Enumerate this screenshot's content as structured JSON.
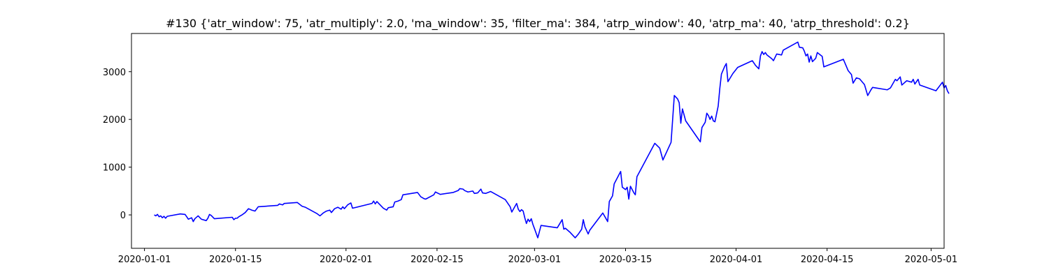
{
  "chart_data": {
    "type": "line",
    "title": "#130 {'atr_window': 75, 'atr_multiply': 2.0, 'ma_window': 35, 'filter_ma': 384, 'atrp_window': 40, 'atrp_ma': 40, 'atrp_threshold': 0.2}",
    "xlabel": "",
    "ylabel": "",
    "x_axis": "date",
    "xlim": [
      "2019-12-30",
      "2020-05-03"
    ],
    "ylim": [
      -700,
      3800
    ],
    "grid": false,
    "legend": "none",
    "x_ticks": [
      "2020-01-01",
      "2020-01-15",
      "2020-02-01",
      "2020-02-15",
      "2020-03-01",
      "2020-03-15",
      "2020-04-01",
      "2020-04-15",
      "2020-05-01"
    ],
    "y_ticks": [
      0,
      1000,
      2000,
      3000
    ],
    "series": [
      {
        "color": "#0000ff",
        "points": [
          [
            "2020-01-02T12:00",
            0
          ],
          [
            "2020-01-02T18:00",
            -20
          ],
          [
            "2020-01-03T00:00",
            10
          ],
          [
            "2020-01-03T06:00",
            -40
          ],
          [
            "2020-01-03T12:00",
            -20
          ],
          [
            "2020-01-03T18:00",
            -60
          ],
          [
            "2020-01-04T00:00",
            -30
          ],
          [
            "2020-01-04T06:00",
            -70
          ],
          [
            "2020-01-04T12:00",
            -30
          ],
          [
            "2020-01-06T12:00",
            20
          ],
          [
            "2020-01-07T06:00",
            10
          ],
          [
            "2020-01-07T12:00",
            -40
          ],
          [
            "2020-01-07T18:00",
            -90
          ],
          [
            "2020-01-08T06:00",
            -60
          ],
          [
            "2020-01-08T12:00",
            -140
          ],
          [
            "2020-01-08T18:00",
            -80
          ],
          [
            "2020-01-09T06:00",
            -20
          ],
          [
            "2020-01-09T18:00",
            -90
          ],
          [
            "2020-01-10T12:00",
            -120
          ],
          [
            "2020-01-10T18:00",
            -70
          ],
          [
            "2020-01-11T00:00",
            10
          ],
          [
            "2020-01-11T06:00",
            -10
          ],
          [
            "2020-01-11T18:00",
            -80
          ],
          [
            "2020-01-14T12:00",
            -50
          ],
          [
            "2020-01-14T18:00",
            -100
          ],
          [
            "2020-01-15T00:00",
            -70
          ],
          [
            "2020-01-15T06:00",
            -70
          ],
          [
            "2020-01-15T12:00",
            -40
          ],
          [
            "2020-01-16T00:00",
            0
          ],
          [
            "2020-01-16T12:00",
            50
          ],
          [
            "2020-01-17T00:00",
            130
          ],
          [
            "2020-01-17T12:00",
            100
          ],
          [
            "2020-01-18T00:00",
            80
          ],
          [
            "2020-01-18T12:00",
            170
          ],
          [
            "2020-01-21T12:00",
            200
          ],
          [
            "2020-01-21T18:00",
            230
          ],
          [
            "2020-01-22T06:00",
            210
          ],
          [
            "2020-01-22T12:00",
            240
          ],
          [
            "2020-01-24T12:00",
            260
          ],
          [
            "2020-01-25T06:00",
            180
          ],
          [
            "2020-01-25T18:00",
            160
          ],
          [
            "2020-01-27T12:00",
            30
          ],
          [
            "2020-01-28T00:00",
            -20
          ],
          [
            "2020-01-28T12:00",
            40
          ],
          [
            "2020-01-29T00:00",
            80
          ],
          [
            "2020-01-29T12:00",
            100
          ],
          [
            "2020-01-29T18:00",
            50
          ],
          [
            "2020-01-30T06:00",
            130
          ],
          [
            "2020-01-30T18:00",
            160
          ],
          [
            "2020-01-31T06:00",
            120
          ],
          [
            "2020-01-31T12:00",
            170
          ],
          [
            "2020-01-31T18:00",
            130
          ],
          [
            "2020-02-01T06:00",
            210
          ],
          [
            "2020-02-01T18:00",
            250
          ],
          [
            "2020-02-02T00:00",
            140
          ],
          [
            "2020-02-05T00:00",
            240
          ],
          [
            "2020-02-05T06:00",
            290
          ],
          [
            "2020-02-05T12:00",
            230
          ],
          [
            "2020-02-05T18:00",
            280
          ],
          [
            "2020-02-06T18:00",
            140
          ],
          [
            "2020-02-07T06:00",
            100
          ],
          [
            "2020-02-07T12:00",
            150
          ],
          [
            "2020-02-08T06:00",
            170
          ],
          [
            "2020-02-08T12:00",
            270
          ],
          [
            "2020-02-09T00:00",
            290
          ],
          [
            "2020-02-09T12:00",
            320
          ],
          [
            "2020-02-09T18:00",
            420
          ],
          [
            "2020-02-12T00:00",
            470
          ],
          [
            "2020-02-12T12:00",
            380
          ],
          [
            "2020-02-13T00:00",
            340
          ],
          [
            "2020-02-13T06:00",
            330
          ],
          [
            "2020-02-14T12:00",
            420
          ],
          [
            "2020-02-14T18:00",
            480
          ],
          [
            "2020-02-15T12:00",
            430
          ],
          [
            "2020-02-17T12:00",
            470
          ],
          [
            "2020-02-18T06:00",
            510
          ],
          [
            "2020-02-18T12:00",
            550
          ],
          [
            "2020-02-19T00:00",
            540
          ],
          [
            "2020-02-19T06:00",
            510
          ],
          [
            "2020-02-19T18:00",
            480
          ],
          [
            "2020-02-20T12:00",
            500
          ],
          [
            "2020-02-20T18:00",
            450
          ],
          [
            "2020-02-21T06:00",
            460
          ],
          [
            "2020-02-21T18:00",
            540
          ],
          [
            "2020-02-22T00:00",
            460
          ],
          [
            "2020-02-22T12:00",
            450
          ],
          [
            "2020-02-23T06:00",
            490
          ],
          [
            "2020-02-25T12:00",
            320
          ],
          [
            "2020-02-26T06:00",
            170
          ],
          [
            "2020-02-26T12:00",
            60
          ],
          [
            "2020-02-27T06:00",
            240
          ],
          [
            "2020-02-27T12:00",
            120
          ],
          [
            "2020-02-27T18:00",
            70
          ],
          [
            "2020-02-28T00:00",
            110
          ],
          [
            "2020-02-28T06:00",
            80
          ],
          [
            "2020-02-28T12:00",
            -60
          ],
          [
            "2020-02-28T18:00",
            -180
          ],
          [
            "2020-02-29T00:00",
            -90
          ],
          [
            "2020-02-29T06:00",
            -140
          ],
          [
            "2020-02-29T12:00",
            -80
          ],
          [
            "2020-02-29T18:00",
            -200
          ],
          [
            "2020-03-01T00:00",
            -290
          ],
          [
            "2020-03-01T12:00",
            -480
          ],
          [
            "2020-03-02T00:00",
            -220
          ],
          [
            "2020-03-04T12:00",
            -270
          ],
          [
            "2020-03-05T06:00",
            -100
          ],
          [
            "2020-03-05T12:00",
            -300
          ],
          [
            "2020-03-05T18:00",
            -280
          ],
          [
            "2020-03-06T12:00",
            -370
          ],
          [
            "2020-03-07T06:00",
            -480
          ],
          [
            "2020-03-07T18:00",
            -400
          ],
          [
            "2020-03-08T06:00",
            -300
          ],
          [
            "2020-03-08T12:00",
            -100
          ],
          [
            "2020-03-08T18:00",
            -250
          ],
          [
            "2020-03-09T06:00",
            -400
          ],
          [
            "2020-03-09T12:00",
            -320
          ],
          [
            "2020-03-11T12:00",
            40
          ],
          [
            "2020-03-12T06:00",
            -140
          ],
          [
            "2020-03-12T12:00",
            280
          ],
          [
            "2020-03-13T00:00",
            400
          ],
          [
            "2020-03-13T06:00",
            650
          ],
          [
            "2020-03-14T06:00",
            910
          ],
          [
            "2020-03-14T12:00",
            580
          ],
          [
            "2020-03-15T00:00",
            530
          ],
          [
            "2020-03-15T06:00",
            580
          ],
          [
            "2020-03-15T12:00",
            330
          ],
          [
            "2020-03-15T18:00",
            600
          ],
          [
            "2020-03-16T06:00",
            470
          ],
          [
            "2020-03-16T12:00",
            420
          ],
          [
            "2020-03-16T18:00",
            800
          ],
          [
            "2020-03-19T12:00",
            1500
          ],
          [
            "2020-03-20T06:00",
            1400
          ],
          [
            "2020-03-20T18:00",
            1150
          ],
          [
            "2020-03-22T00:00",
            1520
          ],
          [
            "2020-03-22T12:00",
            2500
          ],
          [
            "2020-03-23T00:00",
            2430
          ],
          [
            "2020-03-23T06:00",
            2350
          ],
          [
            "2020-03-23T12:00",
            1920
          ],
          [
            "2020-03-23T18:00",
            2220
          ],
          [
            "2020-03-24T06:00",
            1970
          ],
          [
            "2020-03-26T12:00",
            1530
          ],
          [
            "2020-03-26T18:00",
            1830
          ],
          [
            "2020-03-27T06:00",
            1940
          ],
          [
            "2020-03-27T12:00",
            2130
          ],
          [
            "2020-03-27T18:00",
            2080
          ],
          [
            "2020-03-28T00:00",
            2000
          ],
          [
            "2020-03-28T06:00",
            2070
          ],
          [
            "2020-03-28T12:00",
            1970
          ],
          [
            "2020-03-28T18:00",
            1950
          ],
          [
            "2020-03-29T06:00",
            2280
          ],
          [
            "2020-03-29T12:00",
            2650
          ],
          [
            "2020-03-29T18:00",
            2950
          ],
          [
            "2020-03-30T06:00",
            3110
          ],
          [
            "2020-03-30T12:00",
            3170
          ],
          [
            "2020-03-30T18:00",
            2790
          ],
          [
            "2020-03-31T12:00",
            2960
          ],
          [
            "2020-04-01T06:00",
            3090
          ],
          [
            "2020-04-03T12:00",
            3230
          ],
          [
            "2020-04-04T00:00",
            3130
          ],
          [
            "2020-04-04T12:00",
            3060
          ],
          [
            "2020-04-04T18:00",
            3330
          ],
          [
            "2020-04-05T00:00",
            3420
          ],
          [
            "2020-04-05T06:00",
            3360
          ],
          [
            "2020-04-05T12:00",
            3400
          ],
          [
            "2020-04-05T18:00",
            3350
          ],
          [
            "2020-04-06T12:00",
            3270
          ],
          [
            "2020-04-06T18:00",
            3230
          ],
          [
            "2020-04-07T06:00",
            3370
          ],
          [
            "2020-04-08T00:00",
            3350
          ],
          [
            "2020-04-08T06:00",
            3450
          ],
          [
            "2020-04-10T12:00",
            3620
          ],
          [
            "2020-04-10T18:00",
            3510
          ],
          [
            "2020-04-11T06:00",
            3500
          ],
          [
            "2020-04-11T12:00",
            3430
          ],
          [
            "2020-04-11T18:00",
            3330
          ],
          [
            "2020-04-12T00:00",
            3370
          ],
          [
            "2020-04-12T06:00",
            3200
          ],
          [
            "2020-04-12T12:00",
            3330
          ],
          [
            "2020-04-12T18:00",
            3210
          ],
          [
            "2020-04-13T06:00",
            3280
          ],
          [
            "2020-04-13T12:00",
            3400
          ],
          [
            "2020-04-14T06:00",
            3320
          ],
          [
            "2020-04-14T12:00",
            3100
          ],
          [
            "2020-04-17T12:00",
            3260
          ],
          [
            "2020-04-18T06:00",
            3020
          ],
          [
            "2020-04-18T18:00",
            2940
          ],
          [
            "2020-04-19T00:00",
            2760
          ],
          [
            "2020-04-19T12:00",
            2870
          ],
          [
            "2020-04-20T00:00",
            2850
          ],
          [
            "2020-04-20T18:00",
            2730
          ],
          [
            "2020-04-21T06:00",
            2500
          ],
          [
            "2020-04-21T18:00",
            2620
          ],
          [
            "2020-04-22T00:00",
            2670
          ],
          [
            "2020-04-24T06:00",
            2620
          ],
          [
            "2020-04-24T18:00",
            2660
          ],
          [
            "2020-04-25T12:00",
            2840
          ],
          [
            "2020-04-25T18:00",
            2810
          ],
          [
            "2020-04-26T06:00",
            2890
          ],
          [
            "2020-04-26T12:00",
            2720
          ],
          [
            "2020-04-27T06:00",
            2810
          ],
          [
            "2020-04-28T00:00",
            2780
          ],
          [
            "2020-04-28T06:00",
            2840
          ],
          [
            "2020-04-28T12:00",
            2740
          ],
          [
            "2020-04-29T00:00",
            2840
          ],
          [
            "2020-04-29T06:00",
            2720
          ],
          [
            "2020-05-01T18:00",
            2600
          ],
          [
            "2020-05-02T18:00",
            2780
          ],
          [
            "2020-05-03T00:00",
            2660
          ],
          [
            "2020-05-03T06:00",
            2710
          ],
          [
            "2020-05-03T12:00",
            2600
          ],
          [
            "2020-05-03T18:00",
            2540
          ]
        ]
      }
    ]
  }
}
